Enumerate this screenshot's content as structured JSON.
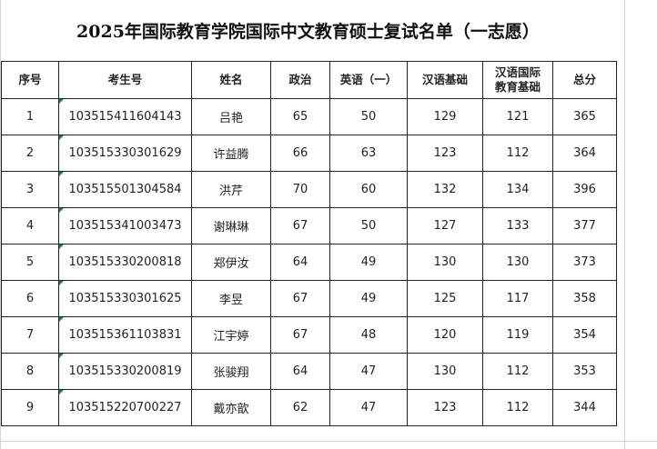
{
  "title": "2025年国际教育学院国际中文教育硕士复试名单（一志愿）",
  "headers": [
    "序号",
    "考生号",
    "姓名",
    "政治",
    "英语（一）",
    "汉语基础",
    "汉语国际教育基础",
    "总分"
  ],
  "rows": [
    [
      "1",
      "103515411604143",
      "吕艳",
      "65",
      "50",
      "129",
      "121",
      "365"
    ],
    [
      "2",
      "103515330301629",
      "许益腾",
      "66",
      "63",
      "123",
      "112",
      "364"
    ],
    [
      "3",
      "103515501304584",
      "洪芹",
      "70",
      "60",
      "132",
      "134",
      "396"
    ],
    [
      "4",
      "103515341003473",
      "谢琳琳",
      "67",
      "50",
      "127",
      "133",
      "377"
    ],
    [
      "5",
      "103515330200818",
      "郑伊汝",
      "64",
      "49",
      "130",
      "130",
      "373"
    ],
    [
      "6",
      "103515330301625",
      "李昱",
      "67",
      "49",
      "125",
      "117",
      "358"
    ],
    [
      "7",
      "103515361103831",
      "江宇婷",
      "67",
      "48",
      "120",
      "119",
      "354"
    ],
    [
      "8",
      "103515330200819",
      "张骏翔",
      "64",
      "47",
      "130",
      "112",
      "353"
    ],
    [
      "9",
      "103515220700227",
      "戴亦歆",
      "62",
      "47",
      "123",
      "112",
      "344"
    ]
  ],
  "colors": {
    "grid": "#d4d4d4",
    "border": "#222222",
    "text_marker": "#1a8a2a"
  }
}
